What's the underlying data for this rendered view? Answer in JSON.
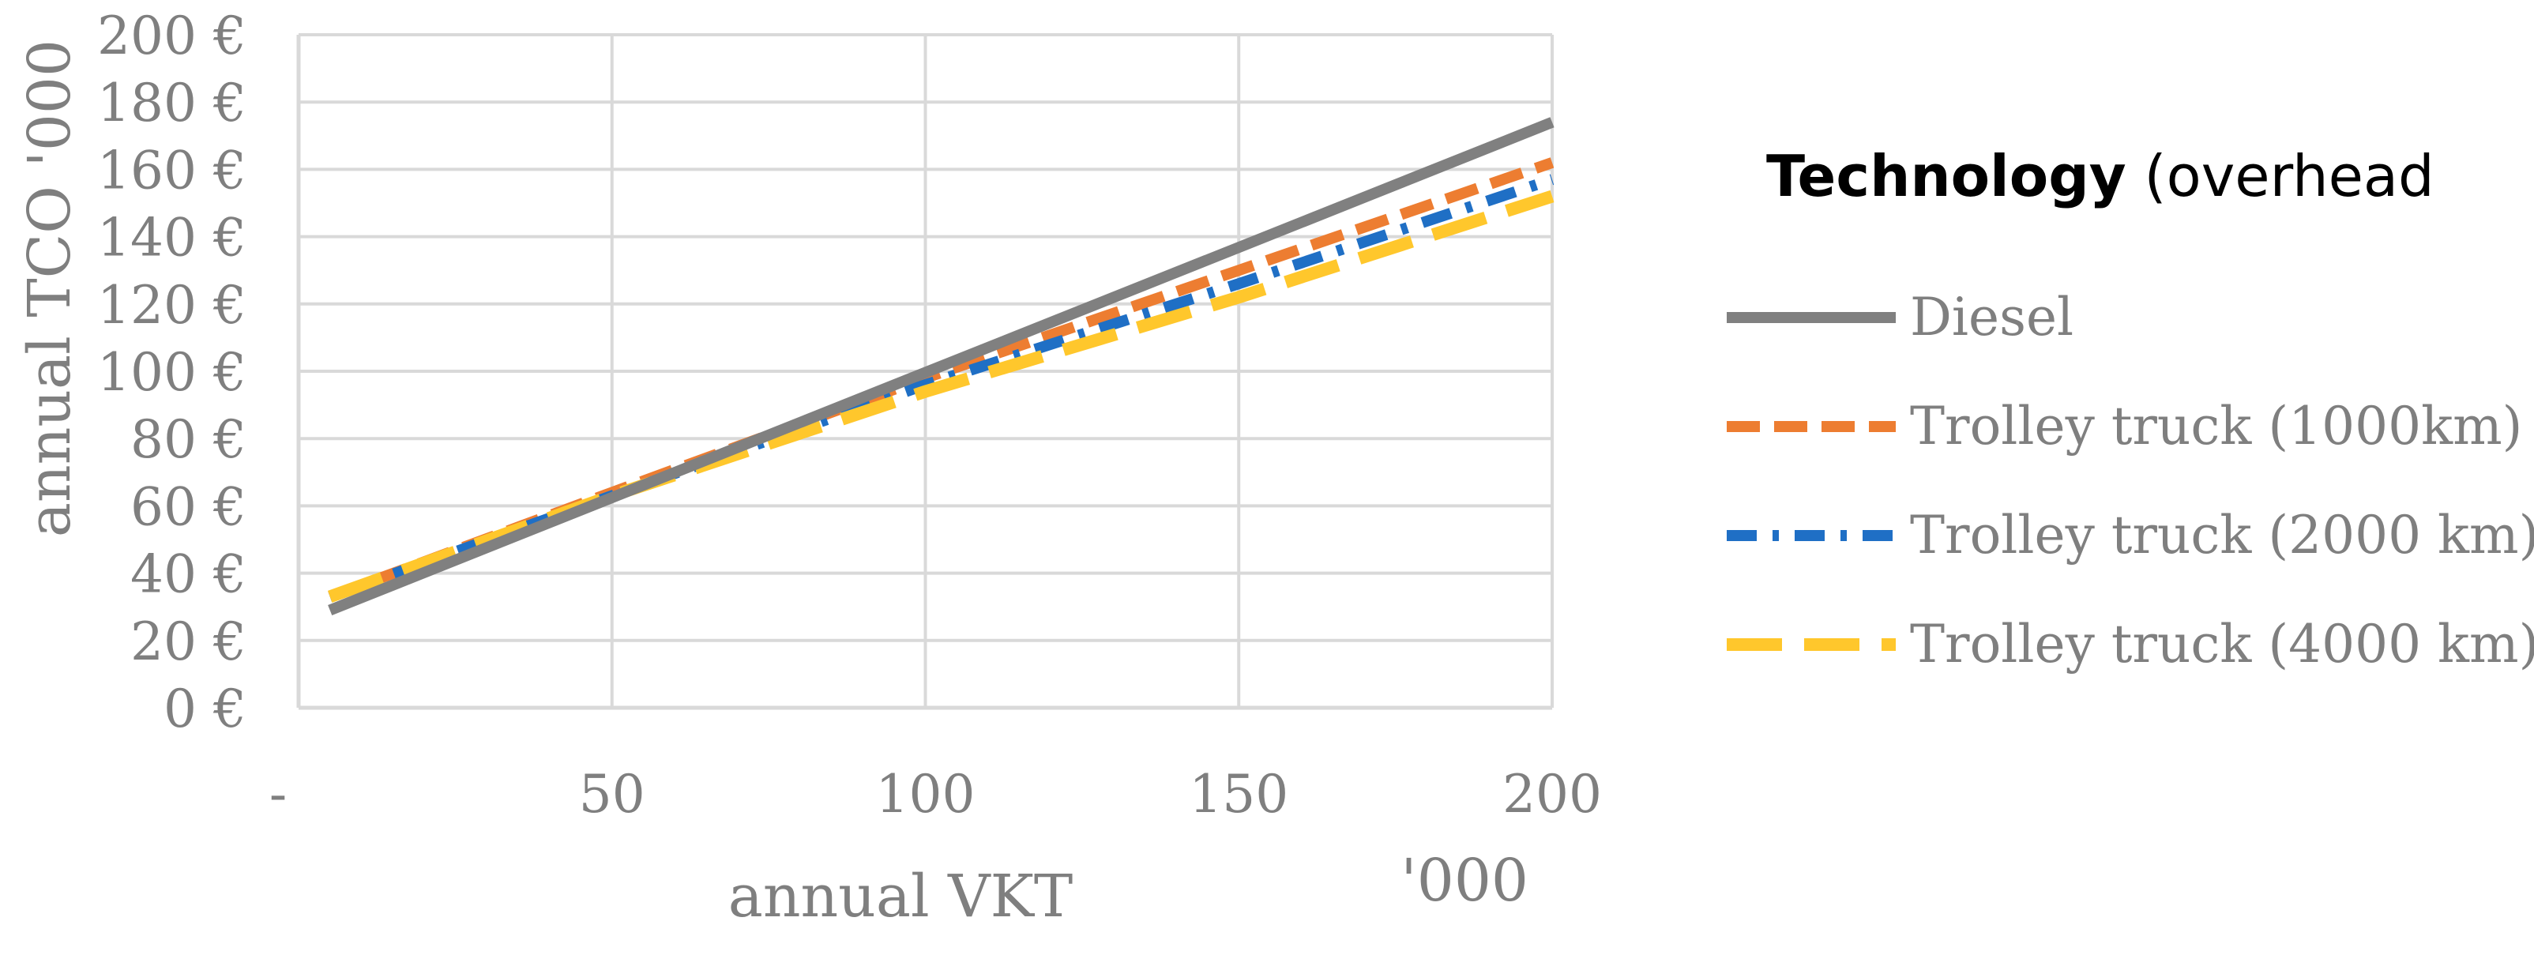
{
  "chart_data": {
    "type": "line",
    "title": "",
    "xlabel": "annual VKT",
    "x_unit_label": "'000",
    "ylabel": "annual TCO  '000",
    "xlim": [
      0,
      200
    ],
    "ylim": [
      0,
      200
    ],
    "x_ticks": [
      0,
      50,
      100,
      150,
      200
    ],
    "x_tick_labels": [
      "-",
      "50",
      "100",
      "150",
      "200"
    ],
    "y_ticks": [
      0,
      20,
      40,
      60,
      80,
      100,
      120,
      140,
      160,
      180,
      200
    ],
    "y_tick_labels": [
      "0 €",
      "20 €",
      "40 €",
      "60 €",
      "80 €",
      "100 €",
      "120 €",
      "140 €",
      "160 €",
      "180 €",
      "200 €"
    ],
    "grid": true,
    "legend": {
      "position": "right",
      "title_bold": "Technology",
      "title_rest": " (overhead"
    },
    "series": [
      {
        "name": "Diesel",
        "color": "#808080",
        "dash": "solid",
        "x": [
          5,
          200
        ],
        "y": [
          29,
          174
        ]
      },
      {
        "name": "Trolley truck (1000km)",
        "color": "#ED7D31",
        "dash": "dash",
        "x": [
          5,
          50,
          100,
          150,
          200
        ],
        "y": [
          33,
          64,
          98,
          130,
          162
        ]
      },
      {
        "name": "Trolley truck (2000 km)",
        "color": "#1F6FC5",
        "dash": "dashdot",
        "x": [
          5,
          50,
          100,
          150,
          200
        ],
        "y": [
          33,
          63,
          96,
          126,
          157
        ]
      },
      {
        "name": "Trolley truck (4000 km)",
        "color": "#FFC72C",
        "dash": "longdash",
        "x": [
          5,
          50,
          100,
          150,
          200
        ],
        "y": [
          33,
          63,
          94,
          122,
          152
        ]
      }
    ]
  }
}
